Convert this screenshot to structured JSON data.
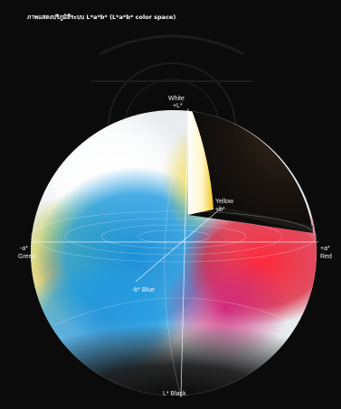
{
  "title": "ภาพแสดงปริภูมิสีระบบ L*a*b* (L*a*b* color space)",
  "labels": {
    "white": "White",
    "plus_l": "+L*",
    "yellow": "Yellow",
    "plus_b": "+b*",
    "minus_a": "-a*",
    "green": "Green",
    "plus_a": "+a*",
    "red": "Red",
    "minus_b_blue": "-b* Blue",
    "black": "L* Black"
  },
  "colors": {
    "background": "#0b0b0b",
    "white": "#ffffff",
    "yellow": "#f2d21e",
    "red": "#e0243c",
    "blue": "#1d8fd6",
    "green": "#7cb83a",
    "magenta": "#c7247a"
  }
}
